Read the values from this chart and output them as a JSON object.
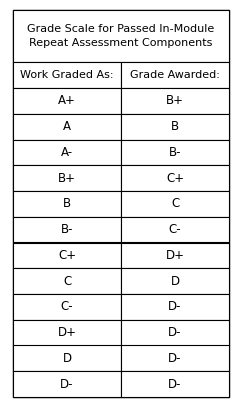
{
  "title": "Grade Scale for Passed In-Module\nRepeat Assessment Components",
  "col1_header": "Work Graded As:",
  "col2_header": "Grade Awarded:",
  "rows": [
    [
      "A+",
      "B+"
    ],
    [
      "A",
      "B"
    ],
    [
      "A-",
      "B-"
    ],
    [
      "B+",
      "C+"
    ],
    [
      "B",
      "C"
    ],
    [
      "B-",
      "C-"
    ],
    [
      "C+",
      "D+"
    ],
    [
      "C",
      "D"
    ],
    [
      "C-",
      "D-"
    ],
    [
      "D+",
      "D-"
    ],
    [
      "D",
      "D-"
    ],
    [
      "D-",
      "D-"
    ]
  ],
  "background_color": "#ffffff",
  "border_color": "#000000",
  "text_color": "#000000",
  "title_fontsize": 8.0,
  "col_header_fontsize": 8.0,
  "cell_fontsize": 8.5,
  "fig_width": 2.42,
  "fig_height": 4.07,
  "dpi": 100
}
